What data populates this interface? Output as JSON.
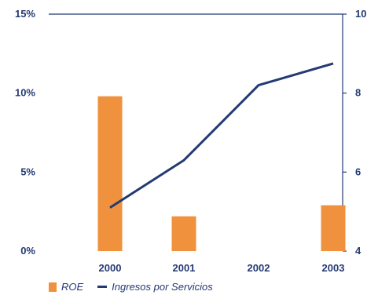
{
  "chart_data": {
    "type": "bar",
    "categories": [
      "2000",
      "2001",
      "2002",
      "2003"
    ],
    "left_axis": {
      "ticks": [
        "0%",
        "5%",
        "10%",
        "15%"
      ],
      "ylim": [
        0,
        15
      ]
    },
    "right_axis": {
      "ticks": [
        "4",
        "6",
        "8",
        "10"
      ],
      "ylim": [
        4,
        10
      ]
    },
    "series": [
      {
        "name": "ROE",
        "kind": "bar",
        "axis": "left",
        "values": [
          9.8,
          2.2,
          null,
          2.9
        ],
        "color": "#f0923d"
      },
      {
        "name": "Ingresos por Servicios",
        "kind": "line",
        "axis": "right",
        "values": [
          5.1,
          6.3,
          8.2,
          8.75
        ],
        "color": "#233a73"
      }
    ],
    "legend": {
      "position": "bottom-left",
      "items": [
        "ROE",
        "Ingresos por Servicios"
      ]
    }
  }
}
